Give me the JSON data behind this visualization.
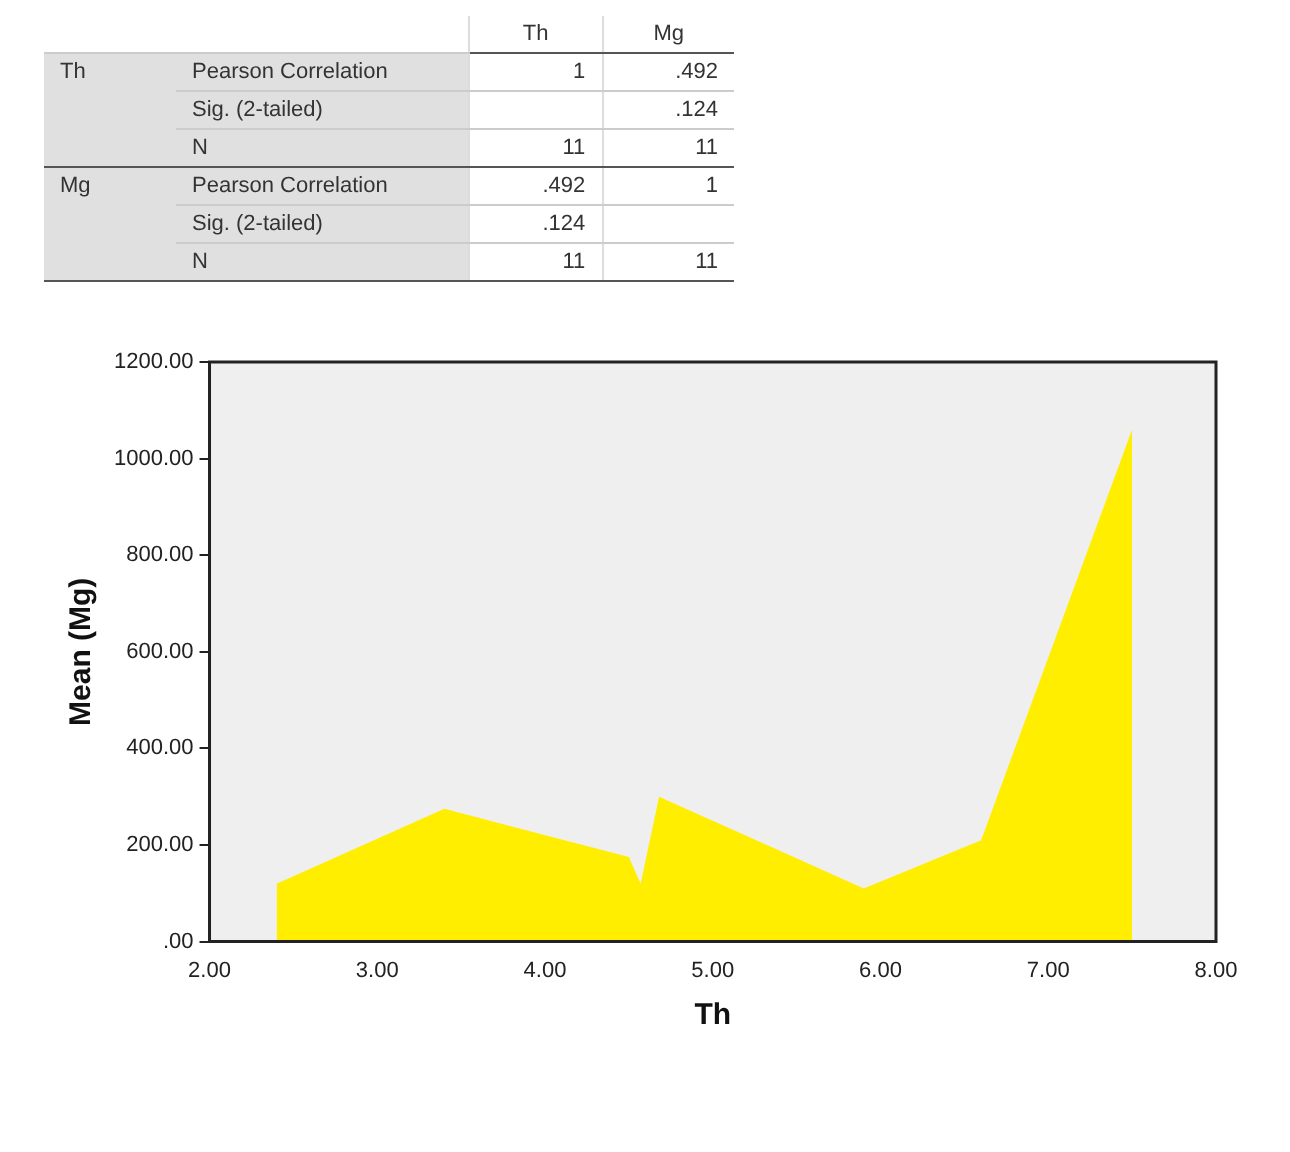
{
  "chart_data": [
    {
      "type": "other",
      "categories": [
        "Th",
        "Mg"
      ],
      "y2_categories": [
        "Th",
        null,
        null,
        "Mg",
        null,
        null
      ],
      "y_categories": [
        "Pearson Correlation",
        "Sig. (2-tailed)",
        "N",
        "Pearson Correlation",
        "Sig. (2-tailed)",
        "N"
      ],
      "cell_labels": [
        [
          "1",
          ".492"
        ],
        [
          null,
          ".124"
        ],
        [
          "11",
          "11"
        ],
        [
          ".492",
          "1"
        ],
        [
          ".124",
          null
        ],
        [
          "11",
          "11"
        ]
      ]
    },
    {
      "type": "area",
      "xlabel": "Th",
      "ylabel": "Mean (Mg)",
      "color": "#ffee00",
      "x": [
        2.4,
        3.4,
        4.5,
        4.57,
        4.68,
        5.9,
        6.6,
        7.5
      ],
      "values": [
        120,
        275,
        175,
        120,
        300,
        110,
        210,
        1060
      ],
      "xlim": [
        2,
        8
      ],
      "xticks": [
        {
          "value": 2,
          "label": "2.00"
        },
        {
          "value": 3,
          "label": "3.00"
        },
        {
          "value": 4,
          "label": "4.00"
        },
        {
          "value": 5,
          "label": "5.00"
        },
        {
          "value": 6,
          "label": "6.00"
        },
        {
          "value": 7,
          "label": "7.00"
        },
        {
          "value": 8,
          "label": "8.00"
        }
      ],
      "ylim": [
        0,
        1200
      ],
      "yticks": [
        {
          "value": 0,
          "label": ".00"
        },
        {
          "value": 200,
          "label": "200.00"
        },
        {
          "value": 400,
          "label": "400.00"
        },
        {
          "value": 600,
          "label": "600.00"
        },
        {
          "value": 800,
          "label": "800.00"
        },
        {
          "value": 1000,
          "label": "1000.00"
        },
        {
          "value": 1200,
          "label": "1200.00"
        }
      ],
      "grid": false,
      "legend": false
    }
  ]
}
